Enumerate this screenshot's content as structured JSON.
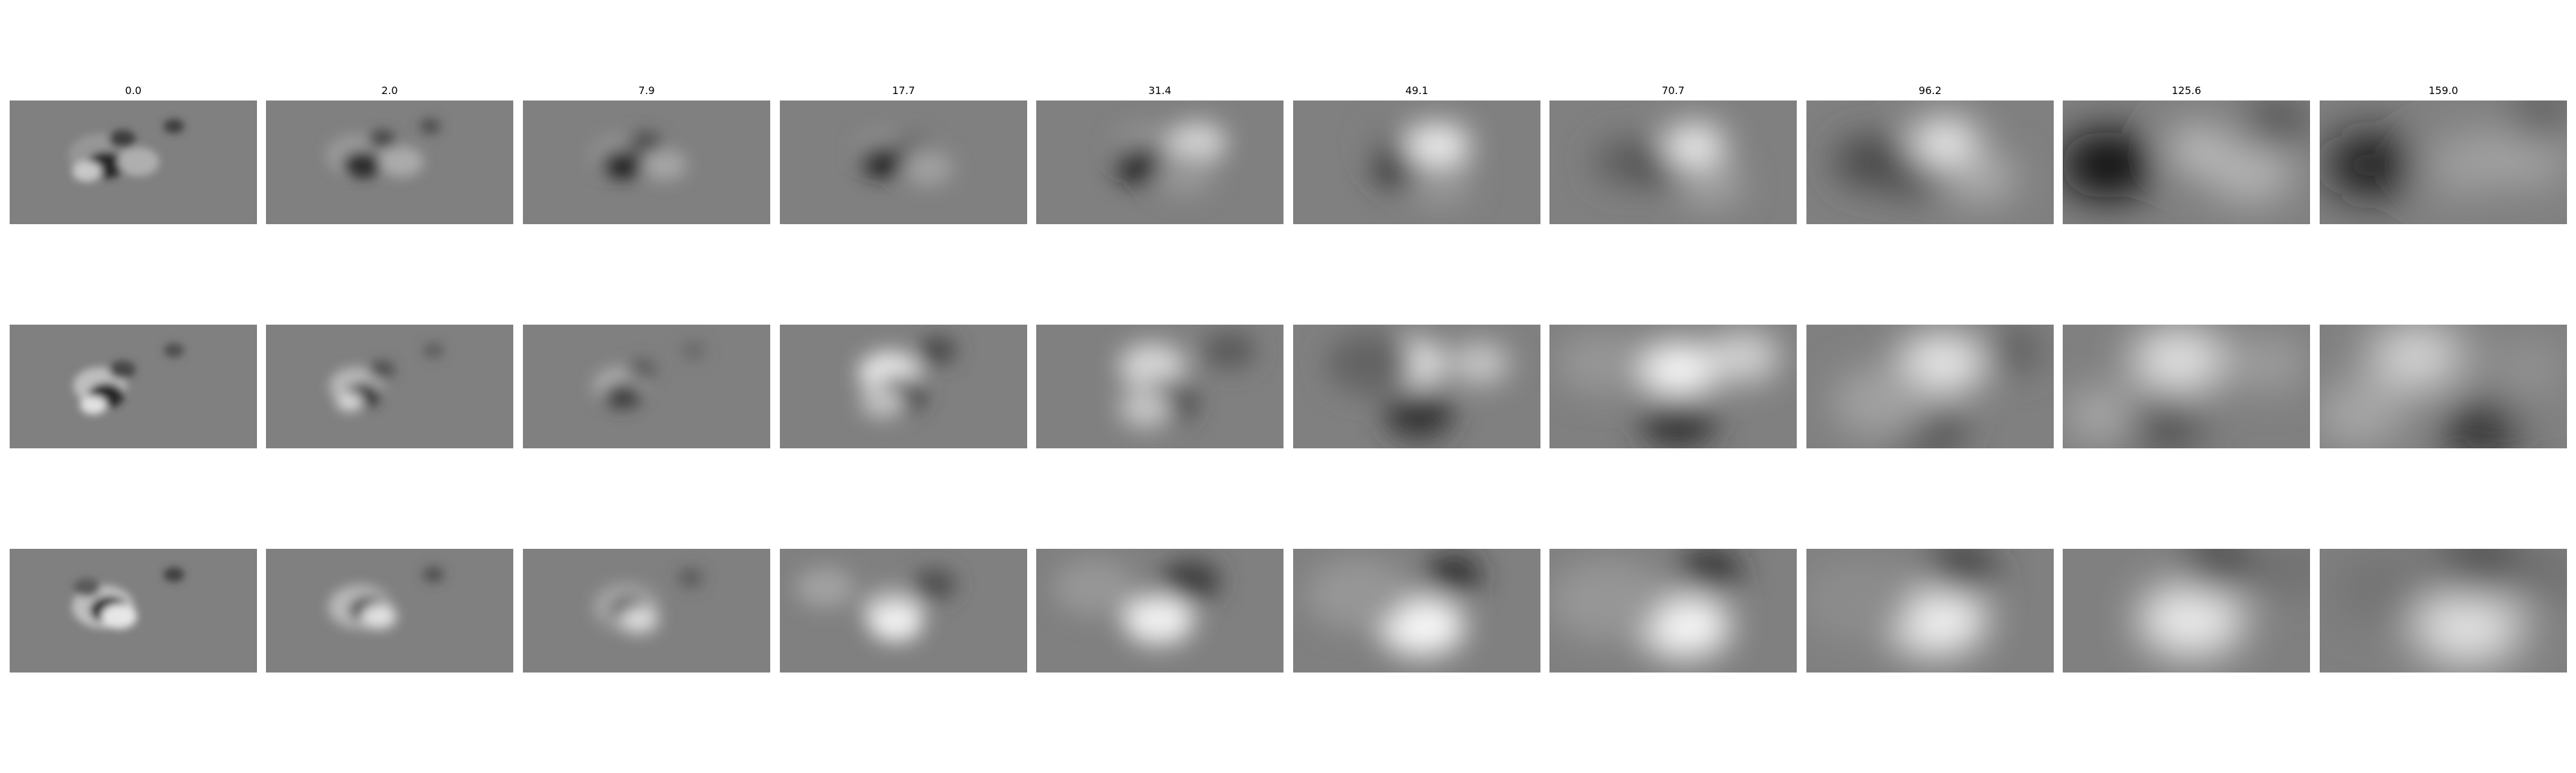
{
  "figure": {
    "column_titles": [
      "0.0",
      "2.0",
      "7.9",
      "17.7",
      "31.4",
      "49.1",
      "70.7",
      "96.2",
      "125.6",
      "159.0"
    ],
    "row_count": 3,
    "colormap": "grayscale",
    "background_color": "#ffffff",
    "panel_base_color": "#808080"
  }
}
